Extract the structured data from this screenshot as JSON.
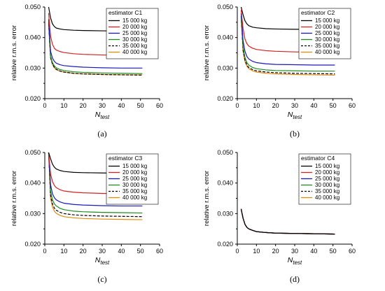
{
  "chart_data": [
    {
      "type": "line",
      "panel_label": "(a)",
      "legend_title": "estimator C1",
      "ylabel": "relative r.m.s. error",
      "xlabel": "N",
      "xlabel_sub": "test",
      "xlim": [
        0,
        60
      ],
      "ylim": [
        0.02,
        0.05
      ],
      "xticks": [
        "0",
        "10",
        "20",
        "30",
        "40",
        "50",
        "60"
      ],
      "yticks": [
        "0.020",
        "0.030",
        "0.040",
        "0.050"
      ],
      "series": [
        {
          "name": "15 000 kg",
          "color": "#000000",
          "dashed": false,
          "x": [
            2,
            3,
            4,
            5,
            6,
            8,
            10,
            15,
            20,
            30,
            40,
            51
          ],
          "y": [
            0.05,
            0.0465,
            0.0445,
            0.0436,
            0.0431,
            0.0428,
            0.0426,
            0.0424,
            0.0423,
            0.0422,
            0.0421,
            0.0421
          ]
        },
        {
          "name": "20 000 kg",
          "color": "#d42020",
          "dashed": false,
          "x": [
            2,
            3,
            4,
            5,
            6,
            8,
            10,
            15,
            20,
            30,
            40,
            51
          ],
          "y": [
            0.048,
            0.0405,
            0.0378,
            0.0365,
            0.0359,
            0.0354,
            0.0351,
            0.0347,
            0.0345,
            0.0343,
            0.0342,
            0.0341
          ]
        },
        {
          "name": "25 000 kg",
          "color": "#1a1ab8",
          "dashed": false,
          "x": [
            2,
            3,
            4,
            5,
            6,
            8,
            10,
            15,
            20,
            30,
            40,
            51
          ],
          "y": [
            0.046,
            0.0355,
            0.0333,
            0.0322,
            0.0316,
            0.0311,
            0.0308,
            0.0305,
            0.0303,
            0.0301,
            0.03,
            0.03
          ]
        },
        {
          "name": "30 000 kg",
          "color": "#1f8a1f",
          "dashed": false,
          "x": [
            2,
            3,
            4,
            5,
            6,
            8,
            10,
            15,
            20,
            30,
            40,
            51
          ],
          "y": [
            0.045,
            0.034,
            0.0318,
            0.0307,
            0.0301,
            0.0295,
            0.0292,
            0.0288,
            0.0286,
            0.0284,
            0.0283,
            0.0282
          ]
        },
        {
          "name": "35 000 kg",
          "color": "#000000",
          "dashed": true,
          "x": [
            2,
            3,
            4,
            5,
            6,
            8,
            10,
            15,
            20,
            30,
            40,
            51
          ],
          "y": [
            0.0445,
            0.0335,
            0.0313,
            0.0302,
            0.0296,
            0.029,
            0.0287,
            0.0283,
            0.0281,
            0.0279,
            0.0278,
            0.0277
          ]
        },
        {
          "name": "40 000 kg",
          "color": "#e08a10",
          "dashed": false,
          "x": [
            2,
            3,
            4,
            5,
            6,
            8,
            10,
            15,
            20,
            30,
            40,
            51
          ],
          "y": [
            0.0445,
            0.0334,
            0.0312,
            0.0301,
            0.0295,
            0.029,
            0.0287,
            0.0283,
            0.0281,
            0.0279,
            0.0278,
            0.0278
          ]
        }
      ]
    },
    {
      "type": "line",
      "panel_label": "(b)",
      "legend_title": "estimator C2",
      "ylabel": "relative r.m.s. error",
      "xlabel": "N",
      "xlabel_sub": "test",
      "xlim": [
        0,
        60
      ],
      "ylim": [
        0.02,
        0.05
      ],
      "xticks": [
        "0",
        "10",
        "20",
        "30",
        "40",
        "50",
        "60"
      ],
      "yticks": [
        "0.020",
        "0.030",
        "0.040",
        "0.050"
      ],
      "series": [
        {
          "name": "15 000 kg",
          "color": "#000000",
          "dashed": false,
          "x": [
            2,
            3,
            4,
            5,
            6,
            8,
            10,
            15,
            20,
            30,
            40,
            51
          ],
          "y": [
            0.05,
            0.0475,
            0.0455,
            0.0445,
            0.0439,
            0.0434,
            0.0432,
            0.0429,
            0.0428,
            0.0427,
            0.0427,
            0.0426
          ]
        },
        {
          "name": "20 000 kg",
          "color": "#d42020",
          "dashed": false,
          "x": [
            2,
            3,
            4,
            5,
            6,
            8,
            10,
            15,
            20,
            30,
            40,
            51
          ],
          "y": [
            0.049,
            0.043,
            0.0395,
            0.038,
            0.0372,
            0.0365,
            0.0361,
            0.0357,
            0.0355,
            0.0353,
            0.0352,
            0.0351
          ]
        },
        {
          "name": "25 000 kg",
          "color": "#1a1ab8",
          "dashed": false,
          "x": [
            2,
            3,
            4,
            5,
            6,
            8,
            10,
            15,
            20,
            30,
            40,
            51
          ],
          "y": [
            0.048,
            0.039,
            0.0355,
            0.0338,
            0.033,
            0.0322,
            0.0318,
            0.0314,
            0.0312,
            0.0311,
            0.031,
            0.031
          ]
        },
        {
          "name": "30 000 kg",
          "color": "#1f8a1f",
          "dashed": false,
          "x": [
            2,
            3,
            4,
            5,
            6,
            8,
            10,
            15,
            20,
            30,
            40,
            51
          ],
          "y": [
            0.047,
            0.037,
            0.0335,
            0.0318,
            0.031,
            0.0302,
            0.0298,
            0.0294,
            0.0292,
            0.0291,
            0.029,
            0.029
          ]
        },
        {
          "name": "35 000 kg",
          "color": "#000000",
          "dashed": true,
          "x": [
            2,
            3,
            4,
            5,
            6,
            8,
            10,
            15,
            20,
            30,
            40,
            51
          ],
          "y": [
            0.047,
            0.036,
            0.0326,
            0.031,
            0.0302,
            0.0295,
            0.0291,
            0.0287,
            0.0285,
            0.0283,
            0.0282,
            0.0281
          ]
        },
        {
          "name": "40 000 kg",
          "color": "#e08a10",
          "dashed": false,
          "x": [
            2,
            3,
            4,
            5,
            6,
            8,
            10,
            15,
            20,
            30,
            40,
            51
          ],
          "y": [
            0.047,
            0.0355,
            0.0322,
            0.0306,
            0.0298,
            0.0291,
            0.0287,
            0.0283,
            0.0281,
            0.0279,
            0.0278,
            0.0277
          ]
        }
      ]
    },
    {
      "type": "line",
      "panel_label": "(c)",
      "legend_title": "estimator C3",
      "ylabel": "relative r.m.s. error",
      "xlabel": "N",
      "xlabel_sub": "test",
      "xlim": [
        0,
        60
      ],
      "ylim": [
        0.02,
        0.05
      ],
      "xticks": [
        "0",
        "10",
        "20",
        "30",
        "40",
        "50",
        "60"
      ],
      "yticks": [
        "0.020",
        "0.030",
        "0.040",
        "0.050"
      ],
      "series": [
        {
          "name": "15 000 kg",
          "color": "#000000",
          "dashed": false,
          "x": [
            2,
            3,
            4,
            5,
            6,
            8,
            10,
            15,
            20,
            30,
            40,
            51
          ],
          "y": [
            0.05,
            0.048,
            0.0462,
            0.0452,
            0.0446,
            0.0441,
            0.0438,
            0.0435,
            0.0434,
            0.0433,
            0.0432,
            0.0432
          ]
        },
        {
          "name": "20 000 kg",
          "color": "#d42020",
          "dashed": false,
          "x": [
            2,
            3,
            4,
            5,
            6,
            8,
            10,
            15,
            20,
            30,
            40,
            51
          ],
          "y": [
            0.05,
            0.043,
            0.0405,
            0.0392,
            0.0385,
            0.0378,
            0.0374,
            0.037,
            0.0368,
            0.0366,
            0.0365,
            0.0365
          ]
        },
        {
          "name": "25 000 kg",
          "color": "#1a1ab8",
          "dashed": false,
          "x": [
            2,
            3,
            4,
            5,
            6,
            8,
            10,
            15,
            20,
            30,
            40,
            51
          ],
          "y": [
            0.05,
            0.0395,
            0.0365,
            0.0352,
            0.0345,
            0.0338,
            0.0334,
            0.033,
            0.0328,
            0.0326,
            0.0325,
            0.0325
          ]
        },
        {
          "name": "30 000 kg",
          "color": "#1f8a1f",
          "dashed": false,
          "x": [
            2,
            3,
            4,
            5,
            6,
            8,
            10,
            15,
            20,
            30,
            40,
            51
          ],
          "y": [
            0.05,
            0.0375,
            0.0345,
            0.0332,
            0.0325,
            0.0317,
            0.0313,
            0.0308,
            0.0306,
            0.0304,
            0.0303,
            0.0302
          ]
        },
        {
          "name": "35 000 kg",
          "color": "#000000",
          "dashed": true,
          "x": [
            2,
            3,
            4,
            5,
            6,
            8,
            10,
            15,
            20,
            30,
            40,
            51
          ],
          "y": [
            0.05,
            0.036,
            0.0332,
            0.0318,
            0.0311,
            0.0304,
            0.03,
            0.0296,
            0.0294,
            0.0292,
            0.0291,
            0.029
          ]
        },
        {
          "name": "40 000 kg",
          "color": "#e08a10",
          "dashed": false,
          "x": [
            2,
            3,
            4,
            5,
            6,
            8,
            10,
            15,
            20,
            30,
            40,
            51
          ],
          "y": [
            0.05,
            0.035,
            0.0322,
            0.0308,
            0.0301,
            0.0294,
            0.029,
            0.0286,
            0.0284,
            0.0282,
            0.0281,
            0.028
          ]
        }
      ]
    },
    {
      "type": "line",
      "panel_label": "(d)",
      "legend_title": "estimator C4",
      "ylabel": "relative r.m.s. error",
      "xlabel": "N",
      "xlabel_sub": "test",
      "xlim": [
        0,
        60
      ],
      "ylim": [
        0.02,
        0.05
      ],
      "xticks": [
        "0",
        "10",
        "20",
        "30",
        "40",
        "50",
        "60"
      ],
      "yticks": [
        "0.020",
        "0.030",
        "0.040",
        "0.050"
      ],
      "series": [
        {
          "name": "15 000 kg",
          "color": "#000000",
          "dashed": false,
          "x": [
            2,
            3,
            4,
            5,
            6,
            8,
            10,
            15,
            20,
            30,
            40,
            51
          ],
          "y": [
            0.0315,
            0.0285,
            0.0265,
            0.0255,
            0.025,
            0.0245,
            0.0241,
            0.0238,
            0.0236,
            0.0235,
            0.0234,
            0.0233
          ]
        },
        {
          "name": "20 000 kg",
          "color": "#d42020",
          "dashed": false,
          "x": [
            2,
            3,
            4,
            5,
            6,
            8,
            10,
            15,
            20,
            30,
            40,
            51
          ],
          "y": [
            0.0315,
            0.0285,
            0.0265,
            0.0255,
            0.025,
            0.0245,
            0.0241,
            0.0238,
            0.0236,
            0.0235,
            0.0234,
            0.0233
          ]
        },
        {
          "name": "25 000 kg",
          "color": "#1a1ab8",
          "dashed": false,
          "x": [
            2,
            3,
            4,
            5,
            6,
            8,
            10,
            15,
            20,
            30,
            40,
            51
          ],
          "y": [
            0.0315,
            0.0285,
            0.0265,
            0.0255,
            0.025,
            0.0245,
            0.0241,
            0.0238,
            0.0236,
            0.0235,
            0.0234,
            0.0233
          ]
        },
        {
          "name": "30 000 kg",
          "color": "#1f8a1f",
          "dashed": false,
          "x": [
            2,
            3,
            4,
            5,
            6,
            8,
            10,
            15,
            20,
            30,
            40,
            51
          ],
          "y": [
            0.0315,
            0.0285,
            0.0265,
            0.0255,
            0.025,
            0.0245,
            0.0241,
            0.0238,
            0.0236,
            0.0235,
            0.0234,
            0.0233
          ]
        },
        {
          "name": "35 000 kg",
          "color": "#000000",
          "dashed": true,
          "x": [
            2,
            3,
            4,
            5,
            6,
            8,
            10,
            15,
            20,
            30,
            40,
            51
          ],
          "y": [
            0.0315,
            0.0285,
            0.0265,
            0.0255,
            0.025,
            0.0245,
            0.0241,
            0.0238,
            0.0236,
            0.0235,
            0.0234,
            0.0233
          ]
        },
        {
          "name": "40 000 kg",
          "color": "#e08a10",
          "dashed": false,
          "x": [
            2,
            3,
            4,
            5,
            6,
            8,
            10,
            15,
            20,
            30,
            40,
            51
          ],
          "y": [
            0.0315,
            0.0285,
            0.0265,
            0.0255,
            0.025,
            0.0245,
            0.0241,
            0.0238,
            0.0236,
            0.0235,
            0.0234,
            0.0233
          ]
        }
      ]
    }
  ]
}
